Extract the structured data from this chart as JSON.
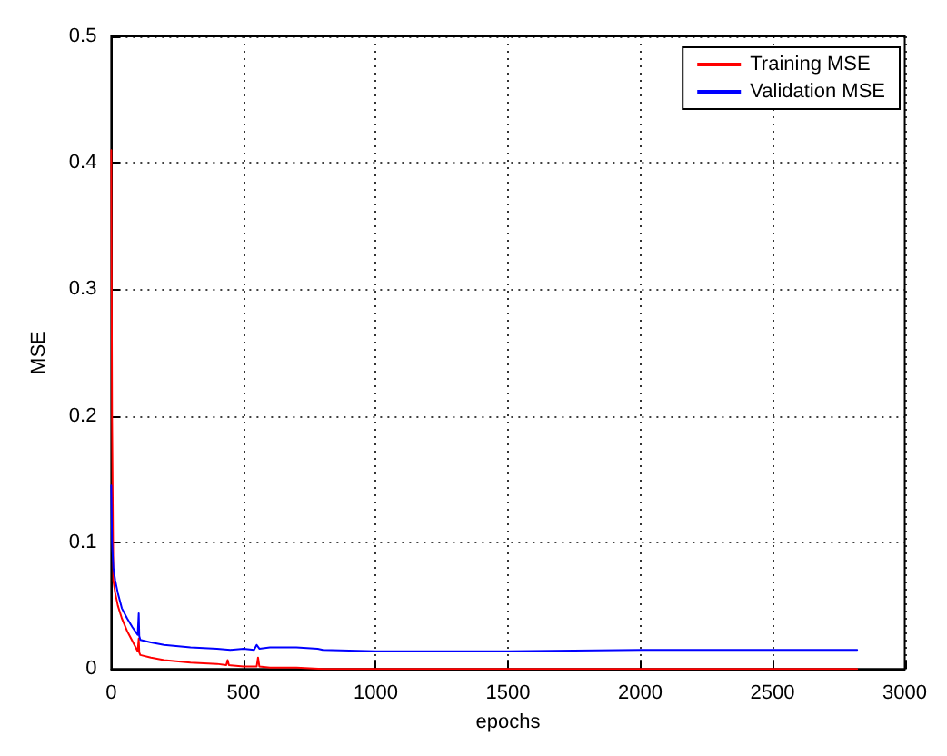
{
  "chart_data": {
    "type": "line",
    "xlabel": "epochs",
    "ylabel": "MSE",
    "xlim": [
      0,
      3000
    ],
    "ylim": [
      0,
      0.5
    ],
    "xticks": [
      0,
      500,
      1000,
      1500,
      2000,
      2500,
      3000
    ],
    "yticks": [
      0,
      0.1,
      0.2,
      0.3,
      0.4,
      0.5
    ],
    "grid": true,
    "legend": "top right",
    "line_style": "solid",
    "marker": "none",
    "series": [
      {
        "name": "Training MSE",
        "color": "#ff0000",
        "x": [
          0,
          3,
          8,
          15,
          25,
          40,
          60,
          80,
          100,
          104,
          106,
          110,
          150,
          200,
          300,
          400,
          435,
          440,
          445,
          500,
          550,
          555,
          560,
          600,
          700,
          800,
          1000,
          1500,
          2000,
          2500,
          2820
        ],
        "values": [
          0.41,
          0.2,
          0.07,
          0.06,
          0.05,
          0.04,
          0.03,
          0.022,
          0.014,
          0.024,
          0.013,
          0.011,
          0.009,
          0.007,
          0.005,
          0.004,
          0.003,
          0.007,
          0.003,
          0.002,
          0.002,
          0.009,
          0.002,
          0.001,
          0.001,
          0,
          0,
          0,
          0,
          0,
          0
        ]
      },
      {
        "name": "Validation MSE",
        "color": "#0000ff",
        "x": [
          0,
          3,
          8,
          15,
          25,
          40,
          60,
          80,
          100,
          104,
          106,
          110,
          150,
          200,
          300,
          400,
          450,
          500,
          540,
          550,
          560,
          600,
          700,
          780,
          800,
          1000,
          1500,
          2000,
          2500,
          2820
        ],
        "values": [
          0.145,
          0.1,
          0.08,
          0.07,
          0.06,
          0.048,
          0.04,
          0.033,
          0.027,
          0.044,
          0.026,
          0.023,
          0.021,
          0.019,
          0.017,
          0.016,
          0.015,
          0.016,
          0.015,
          0.019,
          0.016,
          0.017,
          0.017,
          0.016,
          0.015,
          0.014,
          0.014,
          0.015,
          0.015,
          0.015
        ]
      }
    ]
  }
}
